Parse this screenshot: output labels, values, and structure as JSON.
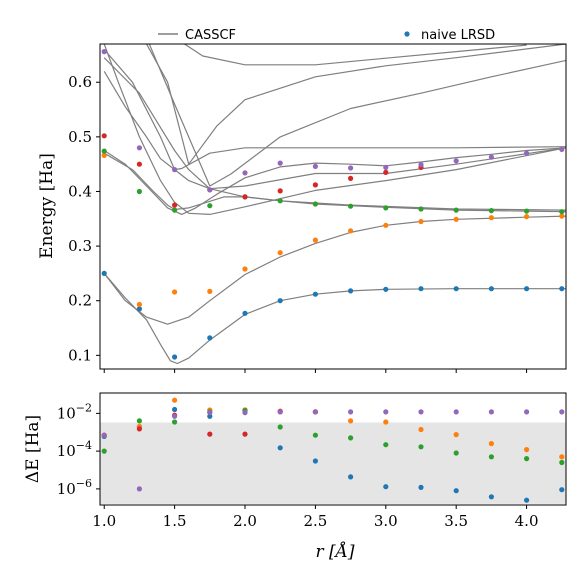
{
  "legend": {
    "curve_label": "CASSCF",
    "points_label": "naive LRSD"
  },
  "chart_data": [
    {
      "type": "line",
      "ylabel": "Energy [Ha]",
      "xlim": [
        0.97,
        4.28
      ],
      "ylim": [
        0.075,
        0.67
      ],
      "yticks": [
        0.1,
        0.2,
        0.3,
        0.4,
        0.5,
        0.6
      ],
      "ytick_labels": [
        "0.1",
        "0.2",
        "0.3",
        "0.4",
        "0.5",
        "0.6"
      ],
      "grid": false,
      "legend_position": "top",
      "curve_color": "#7f7f7f",
      "curves": [
        [
          [
            1.0,
            0.25
          ],
          [
            1.15,
            0.205
          ],
          [
            1.3,
            0.165
          ],
          [
            1.4,
            0.12
          ],
          [
            1.47,
            0.09
          ],
          [
            1.52,
            0.085
          ],
          [
            1.6,
            0.095
          ],
          [
            1.75,
            0.128
          ],
          [
            2.0,
            0.175
          ],
          [
            2.25,
            0.2
          ],
          [
            2.5,
            0.212
          ],
          [
            2.75,
            0.218
          ],
          [
            3.0,
            0.221
          ],
          [
            3.5,
            0.222
          ],
          [
            4.28,
            0.222
          ]
        ],
        [
          [
            1.0,
            0.25
          ],
          [
            1.15,
            0.2
          ],
          [
            1.3,
            0.17
          ],
          [
            1.45,
            0.157
          ],
          [
            1.6,
            0.17
          ],
          [
            1.75,
            0.2
          ],
          [
            2.0,
            0.248
          ],
          [
            2.25,
            0.28
          ],
          [
            2.5,
            0.305
          ],
          [
            2.75,
            0.325
          ],
          [
            3.0,
            0.338
          ],
          [
            3.25,
            0.345
          ],
          [
            3.5,
            0.349
          ],
          [
            4.0,
            0.353
          ],
          [
            4.28,
            0.355
          ]
        ],
        [
          [
            1.0,
            0.47
          ],
          [
            1.2,
            0.44
          ],
          [
            1.35,
            0.4
          ],
          [
            1.45,
            0.375
          ],
          [
            1.5,
            0.367
          ],
          [
            1.6,
            0.37
          ],
          [
            1.75,
            0.382
          ],
          [
            1.85,
            0.39
          ],
          [
            2.0,
            0.39
          ],
          [
            2.25,
            0.383
          ],
          [
            2.5,
            0.377
          ],
          [
            3.0,
            0.371
          ],
          [
            3.5,
            0.366
          ],
          [
            4.0,
            0.364
          ],
          [
            4.28,
            0.363
          ]
        ],
        [
          [
            1.0,
            0.475
          ],
          [
            1.15,
            0.45
          ],
          [
            1.3,
            0.41
          ],
          [
            1.45,
            0.37
          ],
          [
            1.55,
            0.358
          ],
          [
            1.65,
            0.37
          ],
          [
            1.8,
            0.395
          ],
          [
            2.0,
            0.425
          ],
          [
            2.25,
            0.445
          ],
          [
            2.5,
            0.452
          ],
          [
            2.75,
            0.45
          ],
          [
            3.0,
            0.447
          ],
          [
            3.25,
            0.454
          ],
          [
            3.5,
            0.462
          ],
          [
            3.75,
            0.468
          ],
          [
            4.0,
            0.475
          ],
          [
            4.28,
            0.48
          ]
        ],
        [
          [
            1.0,
            0.67
          ],
          [
            1.1,
            0.6
          ],
          [
            1.25,
            0.5
          ],
          [
            1.4,
            0.42
          ],
          [
            1.5,
            0.38
          ],
          [
            1.6,
            0.36
          ],
          [
            1.75,
            0.358
          ],
          [
            2.0,
            0.372
          ],
          [
            2.5,
            0.402
          ],
          [
            3.0,
            0.42
          ],
          [
            3.5,
            0.44
          ],
          [
            4.28,
            0.48
          ]
        ],
        [
          [
            1.0,
            0.66
          ],
          [
            1.2,
            0.6
          ],
          [
            1.4,
            0.5
          ],
          [
            1.5,
            0.44
          ],
          [
            1.6,
            0.42
          ],
          [
            1.75,
            0.405
          ],
          [
            2.0,
            0.41
          ],
          [
            2.5,
            0.433
          ],
          [
            2.75,
            0.433
          ],
          [
            3.0,
            0.433
          ],
          [
            3.5,
            0.45
          ],
          [
            4.28,
            0.48
          ]
        ],
        [
          [
            1.0,
            0.645
          ],
          [
            1.25,
            0.58
          ],
          [
            1.5,
            0.475
          ],
          [
            1.6,
            0.44
          ],
          [
            1.75,
            0.405
          ],
          [
            2.0,
            0.39
          ],
          [
            2.25,
            0.383
          ],
          [
            2.75,
            0.375
          ],
          [
            3.5,
            0.368
          ],
          [
            4.28,
            0.366
          ]
        ],
        [
          [
            1.0,
            0.62
          ],
          [
            1.15,
            0.555
          ],
          [
            1.3,
            0.5
          ],
          [
            1.4,
            0.46
          ],
          [
            1.5,
            0.44
          ],
          [
            1.55,
            0.442
          ],
          [
            1.75,
            0.47
          ],
          [
            2.0,
            0.48
          ],
          [
            2.5,
            0.48
          ],
          [
            3.5,
            0.48
          ],
          [
            4.28,
            0.482
          ]
        ],
        [
          [
            1.32,
            0.67
          ],
          [
            1.5,
            0.56
          ],
          [
            1.75,
            0.41
          ],
          [
            1.9,
            0.432
          ],
          [
            2.25,
            0.5
          ],
          [
            2.75,
            0.552
          ],
          [
            3.25,
            0.58
          ],
          [
            3.75,
            0.61
          ],
          [
            4.28,
            0.64
          ]
        ],
        [
          [
            1.3,
            0.67
          ],
          [
            1.45,
            0.6
          ],
          [
            1.55,
            0.5
          ],
          [
            1.6,
            0.45
          ],
          [
            1.8,
            0.52
          ],
          [
            2.0,
            0.568
          ],
          [
            2.5,
            0.61
          ],
          [
            3.0,
            0.63
          ],
          [
            3.5,
            0.645
          ],
          [
            4.28,
            0.67
          ]
        ],
        [
          [
            1.57,
            0.67
          ],
          [
            1.7,
            0.648
          ],
          [
            2.0,
            0.632
          ],
          [
            2.5,
            0.632
          ],
          [
            3.0,
            0.644
          ],
          [
            3.5,
            0.656
          ],
          [
            4.0,
            0.668
          ]
        ]
      ],
      "series": [
        {
          "color": "#1f77b4",
          "x": [
            1.0,
            1.25,
            1.5,
            1.75,
            2.0,
            2.25,
            2.5,
            2.75,
            3.0,
            3.25,
            3.5,
            3.75,
            4.0,
            4.25
          ],
          "values": [
            0.25,
            0.185,
            0.097,
            0.132,
            0.177,
            0.2,
            0.212,
            0.218,
            0.221,
            0.222,
            0.222,
            0.222,
            0.222,
            0.222
          ]
        },
        {
          "color": "#ff7f0e",
          "x": [
            1.0,
            1.25,
            1.5,
            1.75,
            2.0,
            2.25,
            2.5,
            2.75,
            3.0,
            3.25,
            3.5,
            3.75,
            4.0,
            4.25
          ],
          "values": [
            0.466,
            0.193,
            0.216,
            0.217,
            0.258,
            0.288,
            0.311,
            0.328,
            0.338,
            0.345,
            0.349,
            0.352,
            0.354,
            0.355
          ]
        },
        {
          "color": "#2ca02c",
          "x": [
            1.0,
            1.25,
            1.5,
            1.75,
            2.0,
            2.25,
            2.5,
            2.75,
            3.0,
            3.25,
            3.5,
            3.75,
            4.0,
            4.25
          ],
          "values": [
            0.474,
            0.4,
            0.366,
            0.374,
            0.39,
            0.383,
            0.377,
            0.373,
            0.37,
            0.368,
            0.366,
            0.365,
            0.364,
            0.363
          ]
        },
        {
          "color": "#d62728",
          "x": [
            1.0,
            1.25,
            1.5,
            1.75,
            2.0,
            2.25,
            2.5,
            2.75,
            3.0,
            3.25
          ],
          "values": [
            0.502,
            0.45,
            0.375,
            0.403,
            0.39,
            0.401,
            0.412,
            0.424,
            0.435,
            0.444
          ]
        },
        {
          "color": "#9467bd",
          "x": [
            1.0,
            1.25,
            1.5,
            1.75,
            2.0,
            2.25,
            2.5,
            2.75,
            3.0,
            3.25,
            3.5,
            3.75,
            4.0,
            4.25
          ],
          "values": [
            0.656,
            0.48,
            0.44,
            0.403,
            0.434,
            0.452,
            0.446,
            0.443,
            0.444,
            0.449,
            0.456,
            0.463,
            0.47,
            0.477
          ]
        }
      ]
    },
    {
      "type": "scatter",
      "ylabel": "ΔE [Ha]",
      "xlabel": "r [Å]",
      "yscale": "log",
      "xlim": [
        0.97,
        4.28
      ],
      "ylim": [
        1.4e-07,
        0.12
      ],
      "xticks": [
        1.0,
        1.5,
        2.0,
        2.5,
        3.0,
        3.5,
        4.0
      ],
      "xtick_labels": [
        "1.0",
        "1.5",
        "2.0",
        "2.5",
        "3.0",
        "3.5",
        "4.0"
      ],
      "yticks": [
        1e-06,
        0.0001,
        0.01
      ],
      "ytick_bases": [
        "10",
        "10",
        "10"
      ],
      "ytick_exponents": [
        "−6",
        "−4",
        "−2"
      ],
      "shaded_band": [
        1.6e-07,
        0.0033
      ],
      "shaded_color": "#e5e5e5",
      "grid": false,
      "series": [
        {
          "color": "#1f77b4",
          "x": [
            1.0,
            1.25,
            1.5,
            1.75,
            2.0,
            2.25,
            2.5,
            2.75,
            3.0,
            3.25,
            3.5,
            3.75,
            4.0,
            4.25
          ],
          "values": [
            0.0006,
            0.002,
            0.016,
            0.007,
            0.015,
            0.00015,
            3e-05,
            4.3e-06,
            1.3e-06,
            1.2e-06,
            8e-07,
            3.8e-07,
            2.5e-07,
            9e-07
          ]
        },
        {
          "color": "#ff7f0e",
          "x": [
            1.0,
            1.25,
            1.5,
            1.75,
            2.0,
            2.25,
            2.5,
            2.75,
            3.0,
            3.25,
            3.5,
            3.75,
            4.0,
            4.25
          ],
          "values": [
            0.0007,
            0.002,
            0.05,
            0.015,
            0.015,
            0.012,
            0.012,
            0.004,
            0.0035,
            0.0014,
            0.00075,
            0.00025,
            0.00012,
            5e-05
          ]
        },
        {
          "color": "#2ca02c",
          "x": [
            1.0,
            1.25,
            1.5,
            1.75,
            2.0,
            2.25,
            2.5,
            2.75,
            3.0,
            3.25,
            3.5,
            3.75,
            4.0,
            4.25
          ],
          "values": [
            0.0001,
            0.004,
            0.0035,
            0.012,
            0.014,
            0.0019,
            0.0007,
            0.0005,
            0.00022,
            0.00017,
            8e-05,
            5e-05,
            4e-05,
            2.5e-05
          ]
        },
        {
          "color": "#d62728",
          "x": [
            1.0,
            1.25,
            1.5,
            1.75,
            2.0,
            2.25,
            2.5
          ],
          "values": [
            0.0007,
            0.0015,
            0.008,
            0.0008,
            0.0008,
            0.013,
            0.012
          ]
        },
        {
          "color": "#9467bd",
          "x": [
            1.0,
            1.25,
            1.5,
            1.75,
            2.0,
            2.25,
            2.5,
            2.75,
            3.0,
            3.25,
            3.5,
            3.75,
            4.0,
            4.25
          ],
          "values": [
            0.0007,
            1e-06,
            0.007,
            0.011,
            0.011,
            0.012,
            0.012,
            0.012,
            0.012,
            0.012,
            0.012,
            0.012,
            0.012,
            0.012
          ]
        }
      ]
    }
  ]
}
